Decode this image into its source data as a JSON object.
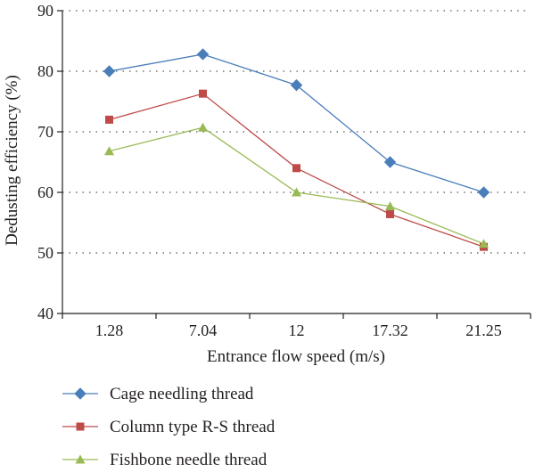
{
  "chart_data": {
    "type": "line",
    "title": "",
    "xlabel": "Entrance flow speed (m/s)",
    "ylabel": "Dedusting efficiency (%)",
    "categories": [
      "1.28",
      "7.04",
      "12",
      "17.32",
      "21.25"
    ],
    "ylim": [
      40,
      90
    ],
    "yticks": [
      40,
      50,
      60,
      70,
      80,
      90
    ],
    "grid": "horizontal-dotted",
    "legend_position": "bottom",
    "series": [
      {
        "name": "Cage needling thread",
        "color": "#4a7ebb",
        "marker": "diamond",
        "values": [
          80,
          82.8,
          77.7,
          65,
          60
        ]
      },
      {
        "name": "Column type R-S thread",
        "color": "#be4b48",
        "marker": "square",
        "values": [
          72,
          76.3,
          64,
          56.4,
          51
        ]
      },
      {
        "name": "Fishbone needle thread",
        "color": "#98b954",
        "marker": "triangle",
        "values": [
          66.8,
          70.7,
          60,
          57.7,
          51.5
        ]
      }
    ]
  }
}
